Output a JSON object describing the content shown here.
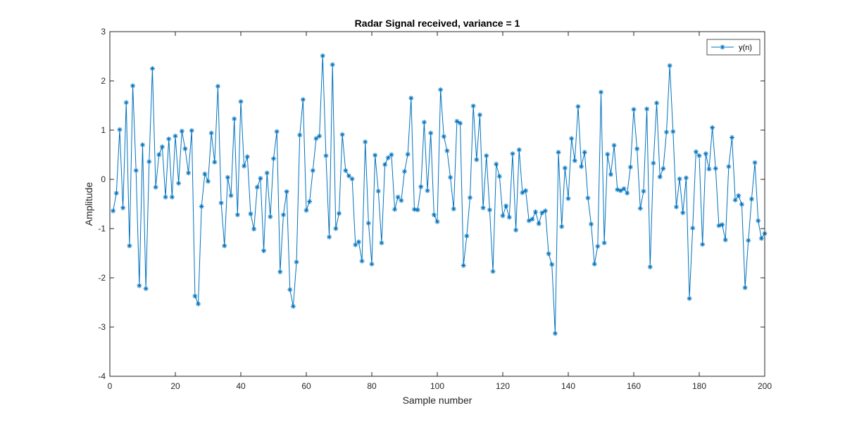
{
  "chart_data": {
    "type": "line",
    "title": "Radar Signal received, variance = 1",
    "xlabel": "Sample number",
    "ylabel": "Amplitude",
    "xlim": [
      0,
      200
    ],
    "ylim": [
      -4,
      3
    ],
    "xticks": [
      "0",
      "20",
      "40",
      "60",
      "80",
      "100",
      "120",
      "140",
      "160",
      "180",
      "200"
    ],
    "yticks": [
      "3",
      "2",
      "1",
      "0",
      "-1",
      "-2",
      "-3",
      "-4"
    ],
    "grid": false,
    "legend_position": "top-right",
    "marker": "asterisk",
    "series": [
      {
        "name": "y(n)",
        "color": "#0072BD",
        "x": [
          1,
          2,
          3,
          4,
          5,
          6,
          7,
          8,
          9,
          10,
          11,
          12,
          13,
          14,
          15,
          16,
          17,
          18,
          19,
          20,
          21,
          22,
          23,
          24,
          25,
          26,
          27,
          28,
          29,
          30,
          31,
          32,
          33,
          34,
          35,
          36,
          37,
          38,
          39,
          40,
          41,
          42,
          43,
          44,
          45,
          46,
          47,
          48,
          49,
          50,
          51,
          52,
          53,
          54,
          55,
          56,
          57,
          58,
          59,
          60,
          61,
          62,
          63,
          64,
          65,
          66,
          67,
          68,
          69,
          70,
          71,
          72,
          73,
          74,
          75,
          76,
          77,
          78,
          79,
          80,
          81,
          82,
          83,
          84,
          85,
          86,
          87,
          88,
          89,
          90,
          91,
          92,
          93,
          94,
          95,
          96,
          97,
          98,
          99,
          100,
          101,
          102,
          103,
          104,
          105,
          106,
          107,
          108,
          109,
          110,
          111,
          112,
          113,
          114,
          115,
          116,
          117,
          118,
          119,
          120,
          121,
          122,
          123,
          124,
          125,
          126,
          127,
          128,
          129,
          130,
          131,
          132,
          133,
          134,
          135,
          136,
          137,
          138,
          139,
          140,
          141,
          142,
          143,
          144,
          145,
          146,
          147,
          148,
          149,
          150,
          151,
          152,
          153,
          154,
          155,
          156,
          157,
          158,
          159,
          160,
          161,
          162,
          163,
          164,
          165,
          166,
          167,
          168,
          169,
          170,
          171,
          172,
          173,
          174,
          175,
          176,
          177,
          178,
          179,
          180,
          181,
          182,
          183,
          184,
          185,
          186,
          187,
          188,
          189,
          190,
          191,
          192,
          193,
          194,
          195,
          196,
          197,
          198,
          199,
          200
        ],
        "values": [
          -0.64,
          -0.28,
          1.01,
          -0.58,
          1.56,
          -1.35,
          1.9,
          0.18,
          -2.16,
          0.7,
          -2.22,
          0.36,
          2.25,
          -0.16,
          0.5,
          0.66,
          -0.36,
          0.82,
          -0.36,
          0.88,
          -0.08,
          0.98,
          0.62,
          0.13,
          0.99,
          -2.37,
          -2.53,
          -0.55,
          0.11,
          -0.04,
          0.94,
          0.35,
          1.89,
          -0.48,
          -1.35,
          0.04,
          -0.33,
          1.23,
          -0.72,
          1.58,
          0.27,
          0.46,
          -0.7,
          -1.01,
          -0.16,
          0.02,
          -1.45,
          0.13,
          -0.76,
          0.42,
          0.97,
          -1.88,
          -0.72,
          -0.25,
          -2.24,
          -2.58,
          -1.68,
          0.9,
          1.62,
          -0.63,
          -0.45,
          0.18,
          0.83,
          0.88,
          2.51,
          0.48,
          -1.17,
          2.33,
          -1.0,
          -0.69,
          0.91,
          0.18,
          0.07,
          0.01,
          -1.33,
          -1.27,
          -1.66,
          0.76,
          -0.89,
          -1.72,
          0.49,
          -0.24,
          -1.29,
          0.3,
          0.44,
          0.5,
          -0.61,
          -0.36,
          -0.43,
          0.16,
          0.51,
          1.65,
          -0.61,
          -0.62,
          -0.15,
          1.16,
          -0.23,
          0.94,
          -0.72,
          -0.86,
          1.82,
          0.87,
          0.58,
          0.04,
          -0.6,
          1.18,
          1.14,
          -1.75,
          -1.15,
          -0.37,
          1.49,
          0.4,
          1.31,
          -0.58,
          0.48,
          -0.62,
          -1.87,
          0.31,
          0.06,
          -0.74,
          -0.54,
          -0.77,
          0.52,
          -1.03,
          0.6,
          -0.27,
          -0.23,
          -0.84,
          -0.81,
          -0.66,
          -0.9,
          -0.68,
          -0.64,
          -1.51,
          -1.73,
          -3.13,
          0.55,
          -0.96,
          0.23,
          -0.39,
          0.83,
          0.38,
          1.48,
          0.26,
          0.55,
          -0.38,
          -0.91,
          -1.72,
          -1.36,
          1.77,
          -1.29,
          0.51,
          0.1,
          0.69,
          -0.21,
          -0.23,
          -0.19,
          -0.28,
          0.25,
          1.42,
          0.62,
          -0.59,
          -0.24,
          1.43,
          -1.78,
          0.33,
          1.55,
          0.05,
          0.22,
          0.96,
          2.31,
          0.97,
          -0.56,
          0.01,
          -0.68,
          0.03,
          -2.42,
          -0.99,
          0.56,
          0.48,
          -1.32,
          0.52,
          0.21,
          1.05,
          0.22,
          -0.94,
          -0.92,
          -1.23,
          0.26,
          0.85,
          -0.42,
          -0.33,
          -0.51,
          -2.2,
          -1.24,
          -0.4,
          0.34,
          -0.84,
          -1.2,
          -1.1
        ]
      }
    ]
  }
}
